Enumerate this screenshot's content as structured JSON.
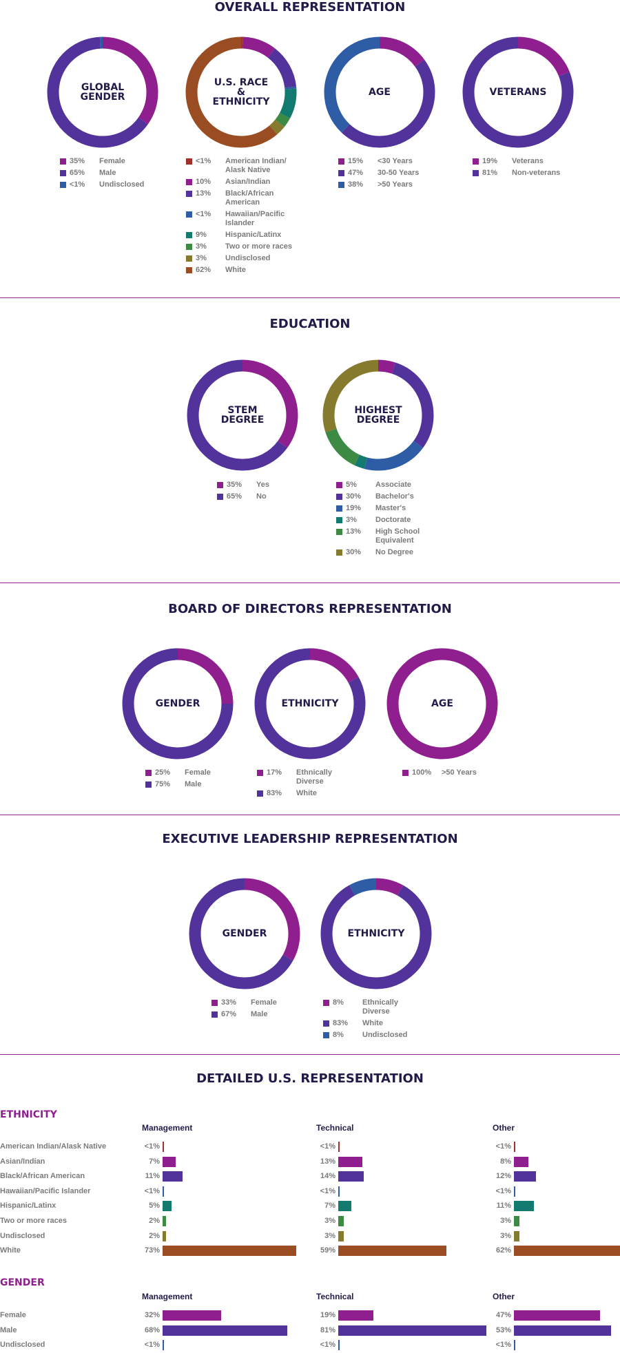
{
  "sections": {
    "overall": "OVERALL REPRESENTATION",
    "education": "EDUCATION",
    "board": "BOARD OF DIRECTORS REPRESENTATION",
    "executive": "EXECUTIVE LEADERSHIP REPRESENTATION",
    "detailed": "DETAILED U.S. REPRESENTATION"
  },
  "colors": {
    "magenta": "#8f1e8f",
    "purple": "#51339b",
    "blue": "#2f5da5",
    "teal": "#137a70",
    "green": "#3d8a45",
    "olive": "#857a2e",
    "brown": "#9a4d22",
    "red": "#a0302a"
  },
  "chart_data": [
    {
      "type": "pie",
      "id": "global-gender",
      "title": "GLOBAL\nGENDER",
      "slices": [
        {
          "label": "Female",
          "pct": "35%",
          "value": 35,
          "color": "#8f1e8f"
        },
        {
          "label": "Male",
          "pct": "65%",
          "value": 65,
          "color": "#51339b"
        },
        {
          "label": "Undisclosed",
          "pct": "<1%",
          "value": 0.8,
          "color": "#2f5da5"
        }
      ]
    },
    {
      "type": "pie",
      "id": "us-race",
      "title": "U.S. RACE\n&\nETHNICITY",
      "slices": [
        {
          "label": "American Indian/ Alask Native",
          "pct": "<1%",
          "value": 0.6,
          "color": "#a0302a"
        },
        {
          "label": "Asian/Indian",
          "pct": "10%",
          "value": 10,
          "color": "#8f1e8f"
        },
        {
          "label": "Black/African American",
          "pct": "13%",
          "value": 13,
          "color": "#51339b"
        },
        {
          "label": "Hawaiian/Pacific Islander",
          "pct": "<1%",
          "value": 0.6,
          "color": "#2f5da5"
        },
        {
          "label": "Hispanic/Latinx",
          "pct": "9%",
          "value": 9,
          "color": "#137a70"
        },
        {
          "label": "Two or more races",
          "pct": "3%",
          "value": 3,
          "color": "#3d8a45"
        },
        {
          "label": "Undisclosed",
          "pct": "3%",
          "value": 3,
          "color": "#857a2e"
        },
        {
          "label": "White",
          "pct": "62%",
          "value": 62,
          "color": "#9a4d22"
        }
      ]
    },
    {
      "type": "pie",
      "id": "age",
      "title": "AGE",
      "slices": [
        {
          "label": "<30 Years",
          "pct": "15%",
          "value": 15,
          "color": "#8f1e8f"
        },
        {
          "label": "30-50 Years",
          "pct": "47%",
          "value": 47,
          "color": "#51339b"
        },
        {
          "label": ">50 Years",
          "pct": "38%",
          "value": 38,
          "color": "#2f5da5"
        }
      ]
    },
    {
      "type": "pie",
      "id": "veterans",
      "title": "VETERANS",
      "slices": [
        {
          "label": "Veterans",
          "pct": "19%",
          "value": 19,
          "color": "#8f1e8f"
        },
        {
          "label": "Non-veterans",
          "pct": "81%",
          "value": 81,
          "color": "#51339b"
        }
      ]
    },
    {
      "type": "pie",
      "id": "stem",
      "title": "STEM\nDEGREE",
      "slices": [
        {
          "label": "Yes",
          "pct": "35%",
          "value": 35,
          "color": "#8f1e8f"
        },
        {
          "label": "No",
          "pct": "65%",
          "value": 65,
          "color": "#51339b"
        }
      ]
    },
    {
      "type": "pie",
      "id": "highest-degree",
      "title": "HIGHEST\nDEGREE",
      "slices": [
        {
          "label": "Associate",
          "pct": "5%",
          "value": 5,
          "color": "#8f1e8f"
        },
        {
          "label": "Bachelor's",
          "pct": "30%",
          "value": 30,
          "color": "#51339b"
        },
        {
          "label": "Master's",
          "pct": "19%",
          "value": 19,
          "color": "#2f5da5"
        },
        {
          "label": "Doctorate",
          "pct": "3%",
          "value": 3,
          "color": "#137a70"
        },
        {
          "label": "High School Equivalent",
          "pct": "13%",
          "value": 13,
          "color": "#3d8a45"
        },
        {
          "label": "No Degree",
          "pct": "30%",
          "value": 30,
          "color": "#857a2e"
        }
      ]
    },
    {
      "type": "pie",
      "id": "board-gender",
      "title": "GENDER",
      "slices": [
        {
          "label": "Female",
          "pct": "25%",
          "value": 25,
          "color": "#8f1e8f"
        },
        {
          "label": "Male",
          "pct": "75%",
          "value": 75,
          "color": "#51339b"
        }
      ]
    },
    {
      "type": "pie",
      "id": "board-ethnicity",
      "title": "ETHNICITY",
      "slices": [
        {
          "label": "Ethnically Diverse",
          "pct": "17%",
          "value": 17,
          "color": "#8f1e8f"
        },
        {
          "label": "White",
          "pct": "83%",
          "value": 83,
          "color": "#51339b"
        }
      ]
    },
    {
      "type": "pie",
      "id": "board-age",
      "title": "AGE",
      "slices": [
        {
          "label": ">50 Years",
          "pct": "100%",
          "value": 100,
          "color": "#8f1e8f"
        }
      ]
    },
    {
      "type": "pie",
      "id": "exec-gender",
      "title": "GENDER",
      "slices": [
        {
          "label": "Female",
          "pct": "33%",
          "value": 33,
          "color": "#8f1e8f"
        },
        {
          "label": "Male",
          "pct": "67%",
          "value": 67,
          "color": "#51339b"
        }
      ]
    },
    {
      "type": "pie",
      "id": "exec-ethnicity",
      "title": "ETHNICITY",
      "slices": [
        {
          "label": "Ethnically Diverse",
          "pct": "8%",
          "value": 8,
          "color": "#8f1e8f"
        },
        {
          "label": "White",
          "pct": "83%",
          "value": 83,
          "color": "#51339b"
        },
        {
          "label": "Undisclosed",
          "pct": "8%",
          "value": 8,
          "color": "#2f5da5"
        }
      ]
    },
    {
      "type": "bar",
      "id": "detailed-ethnicity",
      "title": "ETHNICITY",
      "columns": [
        "Management",
        "Technical",
        "Other"
      ],
      "rows": [
        {
          "label": "American Indian/Alask Native",
          "color": "#a0302a",
          "pcts": [
            "<1%",
            "<1%",
            "<1%"
          ],
          "values": [
            0.6,
            0.6,
            0.6
          ]
        },
        {
          "label": "Asian/Indian",
          "color": "#8f1e8f",
          "pcts": [
            "7%",
            "13%",
            "8%"
          ],
          "values": [
            7,
            13,
            8
          ]
        },
        {
          "label": "Black/African American",
          "color": "#51339b",
          "pcts": [
            "11%",
            "14%",
            "12%"
          ],
          "values": [
            11,
            14,
            12
          ]
        },
        {
          "label": "Hawaiian/Pacific Islander",
          "color": "#2f5da5",
          "pcts": [
            "<1%",
            "<1%",
            "<1%"
          ],
          "values": [
            0.6,
            0.6,
            0.6
          ]
        },
        {
          "label": "Hispanic/Latinx",
          "color": "#137a70",
          "pcts": [
            "5%",
            "7%",
            "11%"
          ],
          "values": [
            5,
            7,
            11
          ]
        },
        {
          "label": "Two or more races",
          "color": "#3d8a45",
          "pcts": [
            "2%",
            "3%",
            "3%"
          ],
          "values": [
            2,
            3,
            3
          ]
        },
        {
          "label": "Undisclosed",
          "color": "#857a2e",
          "pcts": [
            "2%",
            "3%",
            "3%"
          ],
          "values": [
            2,
            3,
            3
          ]
        },
        {
          "label": "White",
          "color": "#9a4d22",
          "pcts": [
            "73%",
            "59%",
            "62%"
          ],
          "values": [
            73,
            59,
            62
          ]
        }
      ]
    },
    {
      "type": "bar",
      "id": "detailed-gender",
      "title": "GENDER",
      "columns": [
        "Management",
        "Technical",
        "Other"
      ],
      "rows": [
        {
          "label": "Female",
          "color": "#8f1e8f",
          "pcts": [
            "32%",
            "19%",
            "47%"
          ],
          "values": [
            32,
            19,
            47
          ]
        },
        {
          "label": "Male",
          "color": "#51339b",
          "pcts": [
            "68%",
            "81%",
            "53%"
          ],
          "values": [
            68,
            81,
            53
          ]
        },
        {
          "label": "Undisclosed",
          "color": "#2f5da5",
          "pcts": [
            "<1%",
            "<1%",
            "<1%"
          ],
          "values": [
            0.6,
            0.6,
            0.6
          ]
        }
      ]
    }
  ]
}
